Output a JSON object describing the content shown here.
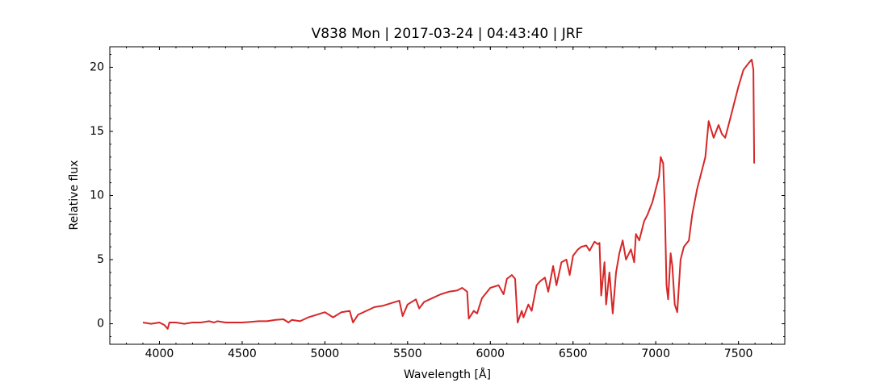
{
  "chart_data": {
    "type": "line",
    "title": "V838 Mon | 2017-03-24 | 04:43:40 | JRF",
    "xlabel": "Wavelength [Å]",
    "ylabel": "Relative flux",
    "xlim": [
      3700,
      7780
    ],
    "ylim": [
      -1.6,
      21.6
    ],
    "xticks": [
      4000,
      4500,
      5000,
      5500,
      6000,
      6500,
      7000,
      7500
    ],
    "yticks": [
      0,
      5,
      10,
      15,
      20
    ],
    "x": [
      3900,
      3950,
      4000,
      4030,
      4050,
      4060,
      4100,
      4150,
      4200,
      4250,
      4300,
      4330,
      4350,
      4400,
      4450,
      4500,
      4550,
      4600,
      4650,
      4700,
      4750,
      4780,
      4800,
      4850,
      4900,
      4950,
      5000,
      5050,
      5100,
      5150,
      5170,
      5200,
      5250,
      5300,
      5350,
      5400,
      5450,
      5470,
      5500,
      5550,
      5570,
      5600,
      5650,
      5700,
      5750,
      5800,
      5830,
      5860,
      5870,
      5900,
      5920,
      5950,
      6000,
      6050,
      6080,
      6100,
      6130,
      6150,
      6165,
      6190,
      6200,
      6230,
      6250,
      6280,
      6300,
      6330,
      6350,
      6380,
      6400,
      6430,
      6460,
      6480,
      6500,
      6530,
      6550,
      6580,
      6600,
      6630,
      6650,
      6660,
      6670,
      6690,
      6700,
      6720,
      6740,
      6760,
      6780,
      6800,
      6820,
      6850,
      6870,
      6880,
      6900,
      6930,
      6950,
      6980,
      7000,
      7020,
      7030,
      7045,
      7055,
      7065,
      7075,
      7090,
      7100,
      7115,
      7130,
      7150,
      7170,
      7200,
      7220,
      7250,
      7280,
      7300,
      7320,
      7350,
      7380,
      7400,
      7420,
      7450,
      7480,
      7500,
      7530,
      7560,
      7580,
      7590,
      7595
    ],
    "series": [
      {
        "name": "flux",
        "color": "#d62728",
        "values": [
          0.1,
          0.0,
          0.1,
          -0.1,
          -0.4,
          0.1,
          0.1,
          0.0,
          0.1,
          0.1,
          0.2,
          0.1,
          0.2,
          0.1,
          0.1,
          0.1,
          0.15,
          0.2,
          0.2,
          0.3,
          0.35,
          0.1,
          0.3,
          0.2,
          0.5,
          0.7,
          0.9,
          0.5,
          0.9,
          1.0,
          0.1,
          0.7,
          1.0,
          1.3,
          1.4,
          1.6,
          1.8,
          0.6,
          1.5,
          1.9,
          1.2,
          1.7,
          2.0,
          2.3,
          2.5,
          2.6,
          2.8,
          2.5,
          0.4,
          1.0,
          0.8,
          2.0,
          2.8,
          3.0,
          2.3,
          3.5,
          3.8,
          3.5,
          0.1,
          1.0,
          0.5,
          1.5,
          1.0,
          3.0,
          3.3,
          3.6,
          2.5,
          4.5,
          3.0,
          4.8,
          5.0,
          3.8,
          5.3,
          5.8,
          6.0,
          6.1,
          5.7,
          6.4,
          6.2,
          6.3,
          2.2,
          4.8,
          1.5,
          4.0,
          0.8,
          4.0,
          5.5,
          6.5,
          5.0,
          5.8,
          4.8,
          7.0,
          6.5,
          8.0,
          8.5,
          9.5,
          10.5,
          11.5,
          13.0,
          12.5,
          9.0,
          3.0,
          1.9,
          5.5,
          4.5,
          1.5,
          0.9,
          5.0,
          6.0,
          6.5,
          8.5,
          10.5,
          12.0,
          13.0,
          15.8,
          14.5,
          15.5,
          14.8,
          14.5,
          16.0,
          17.5,
          18.5,
          19.8,
          20.3,
          20.6,
          19.8,
          12.5
        ]
      }
    ]
  }
}
